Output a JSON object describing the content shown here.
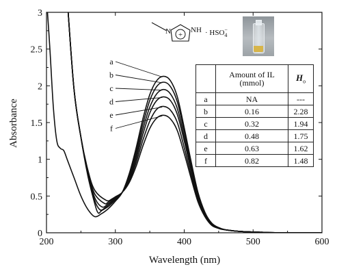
{
  "chart_data": {
    "type": "line",
    "title": "",
    "xlabel": "Wavelength (nm)",
    "ylabel": "Absorbance",
    "xlim": [
      200,
      600
    ],
    "ylim": [
      0,
      3
    ],
    "x_ticks": [
      "200",
      "300",
      "400",
      "500",
      "600"
    ],
    "y_ticks": [
      "0",
      "0.5",
      "1",
      "1.5",
      "2",
      "2.5",
      "3"
    ],
    "grid": false,
    "legend": "labels with leader lines at left of peak",
    "series": [
      {
        "name": "a",
        "peak_nm": 372,
        "peak": 2.13,
        "min_nm": 270,
        "min": 0.22,
        "shoulder": 0.85,
        "points": [
          [
            200,
            3.2
          ],
          [
            205,
            2.5
          ],
          [
            210,
            1.7
          ],
          [
            215,
            1.25
          ],
          [
            220,
            1.15
          ],
          [
            225,
            1.12
          ],
          [
            230,
            1.0
          ],
          [
            240,
            0.75
          ],
          [
            250,
            0.5
          ],
          [
            260,
            0.32
          ],
          [
            270,
            0.22
          ],
          [
            280,
            0.26
          ],
          [
            290,
            0.33
          ],
          [
            300,
            0.43
          ],
          [
            310,
            0.55
          ],
          [
            320,
            0.8
          ],
          [
            330,
            1.15
          ],
          [
            340,
            1.55
          ],
          [
            350,
            1.88
          ],
          [
            360,
            2.07
          ],
          [
            370,
            2.13
          ],
          [
            380,
            2.07
          ],
          [
            390,
            1.85
          ],
          [
            400,
            1.43
          ],
          [
            410,
            0.97
          ],
          [
            420,
            0.55
          ],
          [
            430,
            0.28
          ],
          [
            440,
            0.13
          ],
          [
            450,
            0.07
          ],
          [
            460,
            0.04
          ],
          [
            480,
            0.02
          ],
          [
            520,
            0.005
          ],
          [
            560,
            0.0
          ],
          [
            600,
            0.0
          ]
        ]
      },
      {
        "name": "b",
        "peak_nm": 372,
        "peak": 2.05,
        "min_nm": 275,
        "min": 0.27,
        "points": [
          [
            230,
            3.2
          ],
          [
            240,
            1.95
          ],
          [
            250,
            1.3
          ],
          [
            260,
            0.78
          ],
          [
            270,
            0.4
          ],
          [
            275,
            0.27
          ],
          [
            280,
            0.3
          ],
          [
            290,
            0.36
          ],
          [
            300,
            0.45
          ],
          [
            310,
            0.55
          ],
          [
            320,
            0.78
          ],
          [
            330,
            1.1
          ],
          [
            340,
            1.48
          ],
          [
            350,
            1.8
          ],
          [
            360,
            1.99
          ],
          [
            370,
            2.05
          ],
          [
            380,
            1.99
          ],
          [
            390,
            1.78
          ],
          [
            400,
            1.38
          ],
          [
            410,
            0.94
          ],
          [
            420,
            0.53
          ],
          [
            430,
            0.27
          ],
          [
            440,
            0.13
          ],
          [
            450,
            0.07
          ],
          [
            460,
            0.04
          ],
          [
            480,
            0.02
          ],
          [
            520,
            0.005
          ],
          [
            560,
            0.0
          ],
          [
            600,
            0.0
          ]
        ]
      },
      {
        "name": "c",
        "peak_nm": 372,
        "peak": 1.95,
        "min_nm": 278,
        "min": 0.31,
        "points": [
          [
            230,
            3.2
          ],
          [
            240,
            1.95
          ],
          [
            250,
            1.3
          ],
          [
            260,
            0.8
          ],
          [
            270,
            0.44
          ],
          [
            278,
            0.31
          ],
          [
            285,
            0.34
          ],
          [
            290,
            0.38
          ],
          [
            300,
            0.46
          ],
          [
            310,
            0.55
          ],
          [
            320,
            0.75
          ],
          [
            330,
            1.05
          ],
          [
            340,
            1.41
          ],
          [
            350,
            1.71
          ],
          [
            360,
            1.89
          ],
          [
            370,
            1.95
          ],
          [
            380,
            1.89
          ],
          [
            390,
            1.69
          ],
          [
            400,
            1.31
          ],
          [
            410,
            0.89
          ],
          [
            420,
            0.5
          ],
          [
            430,
            0.26
          ],
          [
            440,
            0.12
          ],
          [
            450,
            0.07
          ],
          [
            460,
            0.04
          ],
          [
            480,
            0.02
          ],
          [
            520,
            0.005
          ],
          [
            560,
            0.0
          ],
          [
            600,
            0.0
          ]
        ]
      },
      {
        "name": "d",
        "peak_nm": 372,
        "peak": 1.85,
        "min_nm": 281,
        "min": 0.35,
        "points": [
          [
            230,
            3.2
          ],
          [
            240,
            1.95
          ],
          [
            250,
            1.3
          ],
          [
            260,
            0.82
          ],
          [
            270,
            0.48
          ],
          [
            281,
            0.35
          ],
          [
            290,
            0.4
          ],
          [
            300,
            0.47
          ],
          [
            310,
            0.55
          ],
          [
            320,
            0.72
          ],
          [
            330,
            1.0
          ],
          [
            340,
            1.34
          ],
          [
            350,
            1.63
          ],
          [
            360,
            1.8
          ],
          [
            370,
            1.85
          ],
          [
            380,
            1.8
          ],
          [
            390,
            1.61
          ],
          [
            400,
            1.25
          ],
          [
            410,
            0.85
          ],
          [
            420,
            0.48
          ],
          [
            430,
            0.25
          ],
          [
            440,
            0.12
          ],
          [
            450,
            0.06
          ],
          [
            460,
            0.04
          ],
          [
            480,
            0.02
          ],
          [
            520,
            0.005
          ],
          [
            560,
            0.0
          ],
          [
            600,
            0.0
          ]
        ]
      },
      {
        "name": "e",
        "peak_nm": 372,
        "peak": 1.72,
        "min_nm": 284,
        "min": 0.4,
        "points": [
          [
            230,
            3.2
          ],
          [
            240,
            1.95
          ],
          [
            250,
            1.3
          ],
          [
            260,
            0.84
          ],
          [
            270,
            0.53
          ],
          [
            284,
            0.4
          ],
          [
            290,
            0.42
          ],
          [
            300,
            0.48
          ],
          [
            310,
            0.55
          ],
          [
            320,
            0.7
          ],
          [
            330,
            0.95
          ],
          [
            340,
            1.26
          ],
          [
            350,
            1.52
          ],
          [
            360,
            1.68
          ],
          [
            370,
            1.72
          ],
          [
            380,
            1.67
          ],
          [
            390,
            1.5
          ],
          [
            400,
            1.16
          ],
          [
            410,
            0.79
          ],
          [
            420,
            0.45
          ],
          [
            430,
            0.23
          ],
          [
            440,
            0.11
          ],
          [
            450,
            0.06
          ],
          [
            460,
            0.04
          ],
          [
            480,
            0.02
          ],
          [
            520,
            0.005
          ],
          [
            560,
            0.0
          ],
          [
            600,
            0.0
          ]
        ]
      },
      {
        "name": "f",
        "peak_nm": 372,
        "peak": 1.6,
        "min_nm": 287,
        "min": 0.44,
        "points": [
          [
            230,
            3.2
          ],
          [
            240,
            1.95
          ],
          [
            250,
            1.3
          ],
          [
            260,
            0.86
          ],
          [
            270,
            0.58
          ],
          [
            287,
            0.44
          ],
          [
            295,
            0.46
          ],
          [
            300,
            0.49
          ],
          [
            310,
            0.55
          ],
          [
            320,
            0.68
          ],
          [
            330,
            0.9
          ],
          [
            340,
            1.18
          ],
          [
            350,
            1.42
          ],
          [
            360,
            1.56
          ],
          [
            370,
            1.6
          ],
          [
            380,
            1.55
          ],
          [
            390,
            1.39
          ],
          [
            400,
            1.08
          ],
          [
            410,
            0.74
          ],
          [
            420,
            0.42
          ],
          [
            430,
            0.22
          ],
          [
            440,
            0.1
          ],
          [
            450,
            0.06
          ],
          [
            460,
            0.04
          ],
          [
            480,
            0.02
          ],
          [
            520,
            0.005
          ],
          [
            560,
            0.0
          ],
          [
            600,
            0.0
          ]
        ]
      }
    ]
  },
  "structure": {
    "cation_label": "NH",
    "anion_label": "· HSO",
    "anion_sub": "4",
    "anion_sup": "−",
    "charge": "+",
    "n_label": "N"
  },
  "table": {
    "headers": [
      "",
      "Amount of IL (mmol)",
      "H"
    ],
    "h_sub": "o",
    "rows": [
      {
        "label": "a",
        "amount": "NA",
        "h0": "---"
      },
      {
        "label": "b",
        "amount": "0.16",
        "h0": "2.28"
      },
      {
        "label": "c",
        "amount": "0.32",
        "h0": "1.94"
      },
      {
        "label": "d",
        "amount": "0.48",
        "h0": "1.75"
      },
      {
        "label": "e",
        "amount": "0.63",
        "h0": "1.62"
      },
      {
        "label": "f",
        "amount": "0.82",
        "h0": "1.48"
      }
    ]
  }
}
